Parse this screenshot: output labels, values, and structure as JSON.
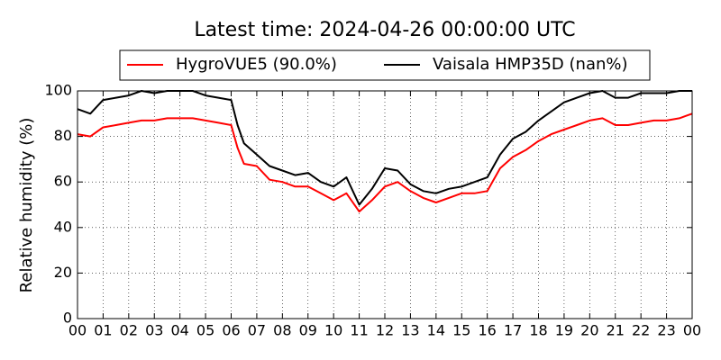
{
  "chart_data": {
    "type": "line",
    "title": "Latest time: 2024-04-26 00:00:00 UTC",
    "y_label": "Relative humidity (%)",
    "x": [
      0,
      0.5,
      1,
      1.5,
      2,
      2.5,
      3,
      3.5,
      4,
      4.5,
      5,
      5.5,
      6,
      6.25,
      6.5,
      7,
      7.5,
      8,
      8.5,
      9,
      9.5,
      10,
      10.5,
      11,
      11.5,
      12,
      12.5,
      13,
      13.5,
      14,
      14.5,
      15,
      15.5,
      16,
      16.5,
      17,
      17.5,
      18,
      18.5,
      19,
      19.5,
      20,
      20.5,
      21,
      21.5,
      22,
      22.5,
      23,
      23.5,
      24
    ],
    "series": [
      {
        "name": "HygroVUE5 (90.0%)",
        "color": "#ff0000",
        "values": [
          81,
          80,
          84,
          85,
          86,
          87,
          87,
          88,
          88,
          88,
          87,
          86,
          85,
          75,
          68,
          67,
          61,
          60,
          58,
          58,
          55,
          52,
          55,
          47,
          52,
          58,
          60,
          56,
          53,
          51,
          53,
          55,
          55,
          56,
          66,
          71,
          74,
          78,
          81,
          83,
          85,
          87,
          88,
          85,
          85,
          86,
          87,
          87,
          88,
          90
        ]
      },
      {
        "name": "Vaisala HMP35D (nan%)",
        "color": "#000000",
        "values": [
          92,
          90,
          96,
          97,
          98,
          100,
          99,
          100,
          100,
          100,
          98,
          97,
          96,
          85,
          77,
          72,
          67,
          65,
          63,
          64,
          60,
          58,
          62,
          50,
          57,
          66,
          65,
          59,
          56,
          55,
          57,
          58,
          60,
          62,
          72,
          79,
          82,
          87,
          91,
          95,
          97,
          99,
          100,
          97,
          97,
          99,
          99,
          99,
          100,
          100
        ]
      }
    ],
    "xlim": [
      0,
      24
    ],
    "xticks": [
      {
        "value": 0,
        "label": "00"
      },
      {
        "value": 1,
        "label": "01"
      },
      {
        "value": 2,
        "label": "02"
      },
      {
        "value": 3,
        "label": "03"
      },
      {
        "value": 4,
        "label": "04"
      },
      {
        "value": 5,
        "label": "05"
      },
      {
        "value": 6,
        "label": "06"
      },
      {
        "value": 7,
        "label": "07"
      },
      {
        "value": 8,
        "label": "08"
      },
      {
        "value": 9,
        "label": "09"
      },
      {
        "value": 10,
        "label": "10"
      },
      {
        "value": 11,
        "label": "11"
      },
      {
        "value": 12,
        "label": "12"
      },
      {
        "value": 13,
        "label": "13"
      },
      {
        "value": 14,
        "label": "14"
      },
      {
        "value": 15,
        "label": "15"
      },
      {
        "value": 16,
        "label": "16"
      },
      {
        "value": 17,
        "label": "17"
      },
      {
        "value": 18,
        "label": "18"
      },
      {
        "value": 19,
        "label": "19"
      },
      {
        "value": 20,
        "label": "20"
      },
      {
        "value": 21,
        "label": "21"
      },
      {
        "value": 22,
        "label": "22"
      },
      {
        "value": 23,
        "label": "23"
      },
      {
        "value": 24,
        "label": "00"
      }
    ],
    "ylim": [
      0,
      100
    ],
    "yticks": [
      0,
      20,
      40,
      60,
      80,
      100
    ],
    "grid": true,
    "legend": "top"
  }
}
